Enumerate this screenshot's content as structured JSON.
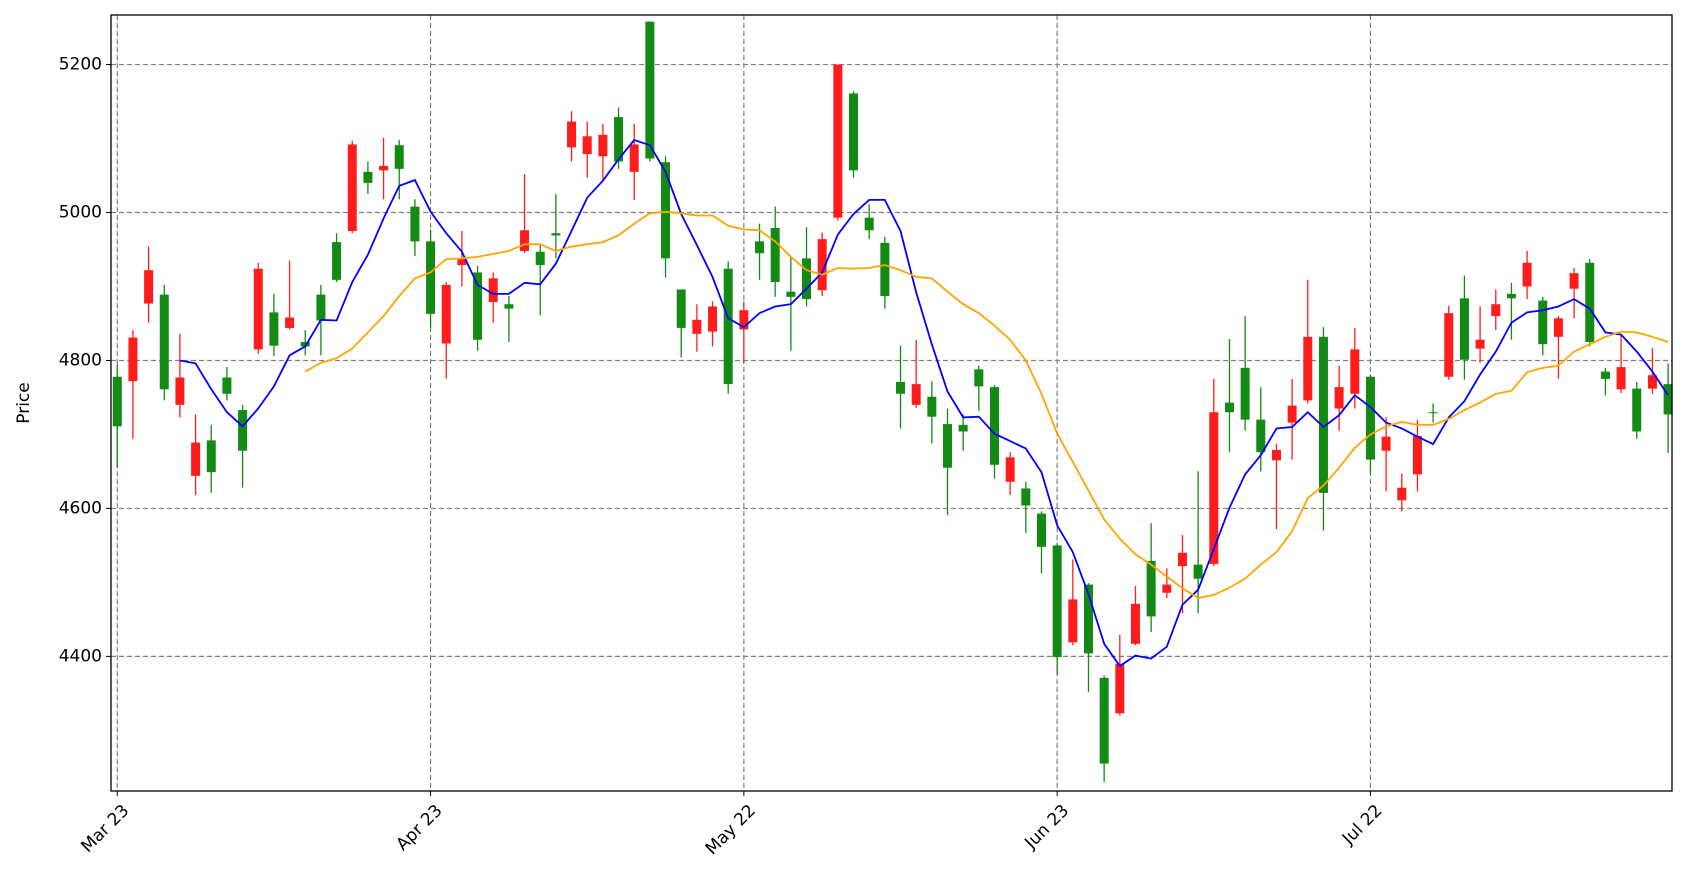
{
  "chart_data": {
    "type": "candlestick",
    "y_label": "Price",
    "categories": [
      "Mar 23",
      null,
      null,
      null,
      null,
      null,
      null,
      null,
      null,
      null,
      null,
      null,
      null,
      null,
      null,
      null,
      null,
      null,
      null,
      null,
      "Apr 23",
      null,
      null,
      null,
      null,
      null,
      null,
      null,
      null,
      null,
      null,
      null,
      null,
      null,
      null,
      null,
      null,
      null,
      null,
      null,
      "May 22",
      null,
      null,
      null,
      null,
      null,
      null,
      null,
      null,
      null,
      null,
      null,
      null,
      null,
      null,
      null,
      null,
      null,
      null,
      null,
      "Jun 23",
      null,
      null,
      null,
      null,
      null,
      null,
      null,
      null,
      null,
      null,
      null,
      null,
      null,
      null,
      null,
      null,
      null,
      null,
      null,
      "Jul 22",
      null,
      null,
      null,
      null,
      null,
      null,
      null,
      null,
      null,
      null,
      null,
      null,
      null,
      null,
      null,
      null,
      null,
      null,
      null
    ],
    "open": [
      4778,
      4772,
      4877,
      4889,
      4740,
      4644,
      4692,
      4777,
      4733,
      4815,
      4865,
      4844,
      4825,
      4889,
      4960,
      4975,
      5055,
      5057,
      5091,
      5008,
      4961,
      4823,
      4929,
      4919,
      4879,
      4876,
      4948,
      4947,
      4972,
      5088,
      5079,
      5076,
      5129,
      5055,
      5258,
      5068,
      4896,
      4836,
      4839,
      4924,
      4842,
      4961,
      4979,
      4893,
      4938,
      4895,
      4993,
      5161,
      4993,
      4959,
      4771,
      4740,
      4751,
      4714,
      4713,
      4788,
      4764,
      4636,
      4627,
      4593,
      4550,
      4419,
      4497,
      4371,
      4323,
      4417,
      4529,
      4486,
      4522,
      4524,
      4525,
      4743,
      4790,
      4720,
      4665,
      4716,
      4746,
      4832,
      4735,
      4755,
      4778,
      4678,
      4611,
      4646,
      4730,
      4778,
      4884,
      4816,
      4860,
      4890,
      4900,
      4881,
      4832,
      4897,
      4932,
      4785,
      4761,
      4762,
      4762,
      4768
    ],
    "high": [
      4795,
      4841,
      4954,
      4902,
      4836,
      4727,
      4713,
      4791,
      4740,
      4932,
      4890,
      4935,
      4841,
      4902,
      4972,
      5097,
      5069,
      5101,
      5098,
      5018,
      4977,
      4906,
      4975,
      4928,
      4919,
      4887,
      5052,
      4956,
      5025,
      5137,
      5123,
      5120,
      5142,
      5120,
      5258,
      5076,
      4896,
      4876,
      4880,
      4934,
      4880,
      4985,
      5008,
      4941,
      4980,
      4973,
      5200,
      5164,
      5011,
      4967,
      4820,
      4828,
      4772,
      4735,
      4727,
      4793,
      4767,
      4676,
      4636,
      4596,
      4553,
      4531,
      4499,
      4374,
      4429,
      4495,
      4580,
      4519,
      4564,
      4650,
      4775,
      4829,
      4860,
      4764,
      4687,
      4775,
      4909,
      4845,
      4793,
      4844,
      4781,
      4723,
      4647,
      4720,
      4742,
      4874,
      4915,
      4873,
      4896,
      4905,
      4948,
      4886,
      4860,
      4925,
      4937,
      4790,
      4833,
      4771,
      4817,
      4796
    ],
    "low": [
      4655,
      4694,
      4851,
      4746,
      4723,
      4618,
      4621,
      4746,
      4628,
      4809,
      4806,
      4842,
      4807,
      4807,
      4906,
      4972,
      5025,
      5018,
      5018,
      4941,
      4844,
      4775,
      4900,
      4813,
      4851,
      4825,
      4945,
      4861,
      4938,
      5069,
      5047,
      5044,
      5059,
      5017,
      5069,
      4912,
      4804,
      4812,
      4819,
      4755,
      4796,
      4909,
      4886,
      4813,
      4873,
      4887,
      4989,
      5047,
      4964,
      4870,
      4708,
      4736,
      4688,
      4591,
      4678,
      4732,
      4640,
      4618,
      4567,
      4512,
      4375,
      4415,
      4352,
      4230,
      4320,
      4415,
      4433,
      4479,
      4458,
      4458,
      4522,
      4676,
      4705,
      4650,
      4572,
      4666,
      4742,
      4570,
      4705,
      4735,
      4647,
      4623,
      4596,
      4623,
      4716,
      4774,
      4774,
      4797,
      4841,
      4828,
      4883,
      4807,
      4775,
      4857,
      4819,
      4753,
      4756,
      4694,
      4755,
      4675
    ],
    "close": [
      4711,
      4831,
      4922,
      4761,
      4777,
      4689,
      4649,
      4755,
      4678,
      4924,
      4820,
      4858,
      4819,
      4854,
      4909,
      5092,
      5040,
      5063,
      5059,
      4961,
      4863,
      4902,
      4938,
      4828,
      4911,
      4870,
      4976,
      4929,
      4969,
      5123,
      5103,
      5105,
      5069,
      5092,
      5073,
      4938,
      4844,
      4855,
      4873,
      4768,
      4868,
      4945,
      4906,
      4886,
      4883,
      4964,
      5200,
      5057,
      4976,
      4887,
      4755,
      4768,
      4724,
      4655,
      4704,
      4765,
      4659,
      4669,
      4604,
      4548,
      4399,
      4477,
      4404,
      4255,
      4390,
      4471,
      4454,
      4497,
      4540,
      4505,
      4730,
      4730,
      4720,
      4676,
      4679,
      4739,
      4832,
      4621,
      4764,
      4815,
      4666,
      4697,
      4628,
      4698,
      4729,
      4864,
      4801,
      4828,
      4876,
      4884,
      4932,
      4822,
      4857,
      4918,
      4825,
      4775,
      4791,
      4704,
      4780,
      4727
    ],
    "up_color": "#ff1c1c",
    "down_color": "#138a13",
    "moving_averages": [
      {
        "color": "#0000ff",
        "values": [
          null,
          null,
          null,
          null,
          4800,
          4796,
          4761,
          4730,
          4711,
          4735,
          4765,
          4807,
          4819,
          4855,
          4854,
          4906,
          4943,
          4992,
          5036,
          5044,
          5001,
          4972,
          4947,
          4902,
          4890,
          4890,
          4905,
          4903,
          4931,
          4975,
          5020,
          5043,
          5072,
          5098,
          5091,
          5055,
          4998,
          4956,
          4913,
          4857,
          4845,
          4864,
          4873,
          4876,
          4897,
          4919,
          4970,
          4998,
          5017,
          5017,
          4975,
          4892,
          4822,
          4758,
          4723,
          4724,
          4701,
          4691,
          4681,
          4649,
          4577,
          4541,
          4484,
          4417,
          4387,
          4401,
          4397,
          4413,
          4470,
          4490,
          4545,
          4601,
          4646,
          4672,
          4708,
          4710,
          4730,
          4710,
          4726,
          4753,
          4737,
          4716,
          4708,
          4697,
          4687,
          4723,
          4745,
          4781,
          4812,
          4851,
          4865,
          4868,
          4873,
          4883,
          4870,
          4838,
          4835,
          4812,
          4785,
          4753
        ]
      },
      {
        "color": "#ffa500",
        "values": [
          null,
          null,
          null,
          null,
          null,
          null,
          null,
          null,
          null,
          null,
          null,
          null,
          4785,
          4797,
          4803,
          4816,
          4838,
          4860,
          4887,
          4911,
          4919,
          4937,
          4938,
          4940,
          4944,
          4948,
          4957,
          4957,
          4948,
          4954,
          4957,
          4960,
          4969,
          4985,
          4999,
          5001,
          4999,
          4996,
          4996,
          4982,
          4977,
          4976,
          4961,
          4940,
          4922,
          4916,
          4925,
          4924,
          4925,
          4929,
          4922,
          4913,
          4911,
          4893,
          4876,
          4864,
          4847,
          4828,
          4800,
          4755,
          4701,
          4663,
          4624,
          4585,
          4559,
          4538,
          4524,
          4508,
          4492,
          4479,
          4483,
          4493,
          4505,
          4524,
          4541,
          4569,
          4614,
          4631,
          4655,
          4682,
          4700,
          4711,
          4717,
          4713,
          4713,
          4721,
          4733,
          4743,
          4755,
          4759,
          4784,
          4790,
          4793,
          4812,
          4822,
          4832,
          4839,
          4838,
          4832,
          4825
        ]
      }
    ],
    "ylim": [
      4218,
      5267
    ],
    "yticks": [
      4400,
      4600,
      4800,
      5000,
      5200
    ],
    "grid": true
  }
}
